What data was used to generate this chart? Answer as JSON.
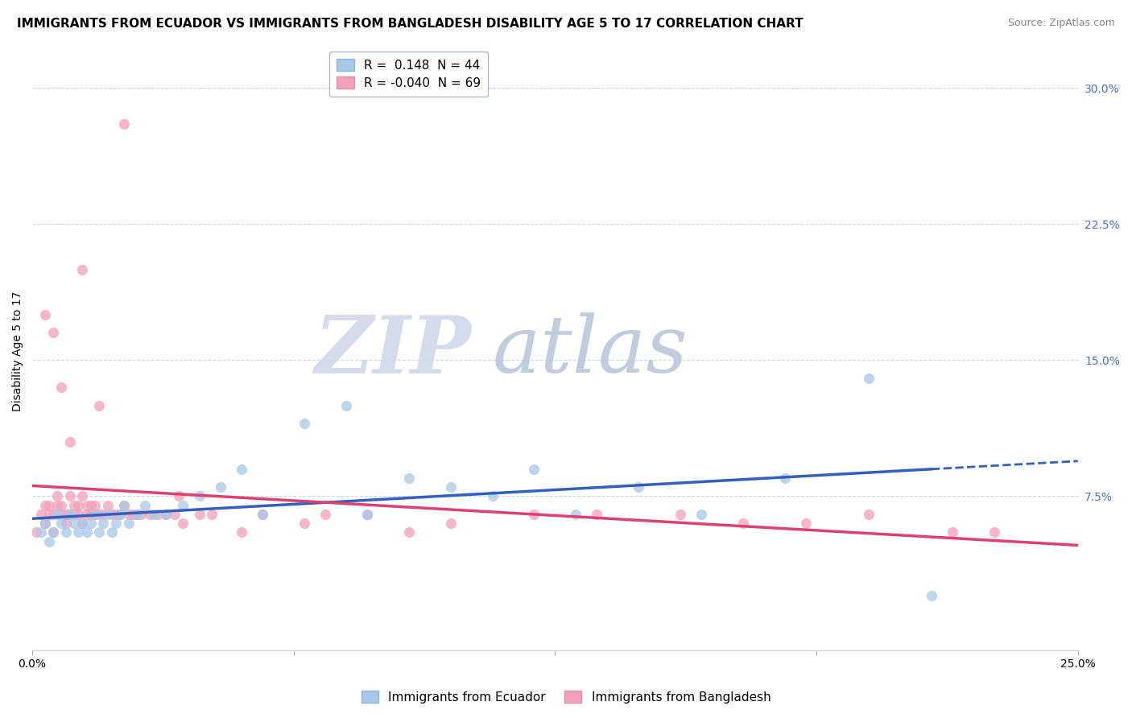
{
  "title": "IMMIGRANTS FROM ECUADOR VS IMMIGRANTS FROM BANGLADESH DISABILITY AGE 5 TO 17 CORRELATION CHART",
  "source": "Source: ZipAtlas.com",
  "ylabel": "Disability Age 5 to 17",
  "xlim": [
    0.0,
    0.25
  ],
  "ylim": [
    -0.01,
    0.32
  ],
  "yticks": [
    0.0,
    0.075,
    0.15,
    0.225,
    0.3
  ],
  "ytick_labels": [
    "",
    "7.5%",
    "15.0%",
    "22.5%",
    "30.0%"
  ],
  "xticks": [
    0.0,
    0.0625,
    0.125,
    0.1875,
    0.25
  ],
  "xtick_labels": [
    "0.0%",
    "",
    "",
    "",
    "25.0%"
  ],
  "color_blue": "#a8c8e8",
  "color_pink": "#f4a0b8",
  "line_color_blue": "#3060c0",
  "line_color_pink": "#e04070",
  "R_ecuador": 0.148,
  "N_ecuador": 44,
  "R_bangladesh": -0.04,
  "N_bangladesh": 69,
  "legend_entries": [
    "Immigrants from Ecuador",
    "Immigrants from Bangladesh"
  ],
  "watermark_zip": "ZIP",
  "watermark_atlas": "atlas",
  "title_fontsize": 11,
  "source_fontsize": 9,
  "axis_label_fontsize": 10,
  "tick_fontsize": 10,
  "legend_fontsize": 11,
  "watermark_fontsize": 72,
  "ecuador_x": [
    0.002,
    0.003,
    0.004,
    0.005,
    0.006,
    0.007,
    0.008,
    0.009,
    0.01,
    0.011,
    0.012,
    0.013,
    0.014,
    0.015,
    0.016,
    0.017,
    0.018,
    0.019,
    0.02,
    0.021,
    0.022,
    0.023,
    0.025,
    0.027,
    0.029,
    0.032,
    0.036,
    0.04,
    0.045,
    0.05,
    0.055,
    0.065,
    0.075,
    0.08,
    0.09,
    0.1,
    0.11,
    0.12,
    0.13,
    0.145,
    0.16,
    0.18,
    0.2,
    0.215
  ],
  "ecuador_y": [
    0.055,
    0.06,
    0.05,
    0.055,
    0.065,
    0.06,
    0.055,
    0.065,
    0.06,
    0.055,
    0.06,
    0.055,
    0.06,
    0.065,
    0.055,
    0.06,
    0.065,
    0.055,
    0.06,
    0.065,
    0.07,
    0.06,
    0.065,
    0.07,
    0.065,
    0.065,
    0.07,
    0.075,
    0.08,
    0.09,
    0.065,
    0.115,
    0.125,
    0.065,
    0.085,
    0.08,
    0.075,
    0.09,
    0.065,
    0.08,
    0.065,
    0.085,
    0.14,
    0.02
  ],
  "bangladesh_x": [
    0.001,
    0.002,
    0.003,
    0.003,
    0.004,
    0.004,
    0.005,
    0.005,
    0.006,
    0.006,
    0.007,
    0.007,
    0.008,
    0.008,
    0.009,
    0.009,
    0.01,
    0.01,
    0.011,
    0.011,
    0.012,
    0.012,
    0.013,
    0.013,
    0.014,
    0.014,
    0.015,
    0.015,
    0.016,
    0.017,
    0.018,
    0.019,
    0.02,
    0.021,
    0.022,
    0.023,
    0.024,
    0.025,
    0.026,
    0.028,
    0.03,
    0.032,
    0.034,
    0.036,
    0.04,
    0.043,
    0.05,
    0.055,
    0.065,
    0.07,
    0.08,
    0.09,
    0.1,
    0.12,
    0.135,
    0.155,
    0.17,
    0.185,
    0.2,
    0.22,
    0.23,
    0.003,
    0.005,
    0.007,
    0.009,
    0.012,
    0.016,
    0.022,
    0.035
  ],
  "bangladesh_y": [
    0.055,
    0.065,
    0.06,
    0.07,
    0.065,
    0.07,
    0.055,
    0.065,
    0.07,
    0.075,
    0.065,
    0.07,
    0.06,
    0.065,
    0.065,
    0.075,
    0.065,
    0.07,
    0.065,
    0.07,
    0.06,
    0.075,
    0.065,
    0.07,
    0.065,
    0.07,
    0.065,
    0.07,
    0.065,
    0.065,
    0.07,
    0.065,
    0.065,
    0.065,
    0.07,
    0.065,
    0.065,
    0.065,
    0.065,
    0.065,
    0.065,
    0.065,
    0.065,
    0.06,
    0.065,
    0.065,
    0.055,
    0.065,
    0.06,
    0.065,
    0.065,
    0.055,
    0.06,
    0.065,
    0.065,
    0.065,
    0.06,
    0.06,
    0.065,
    0.055,
    0.055,
    0.175,
    0.165,
    0.135,
    0.105,
    0.2,
    0.125,
    0.28,
    0.075
  ]
}
